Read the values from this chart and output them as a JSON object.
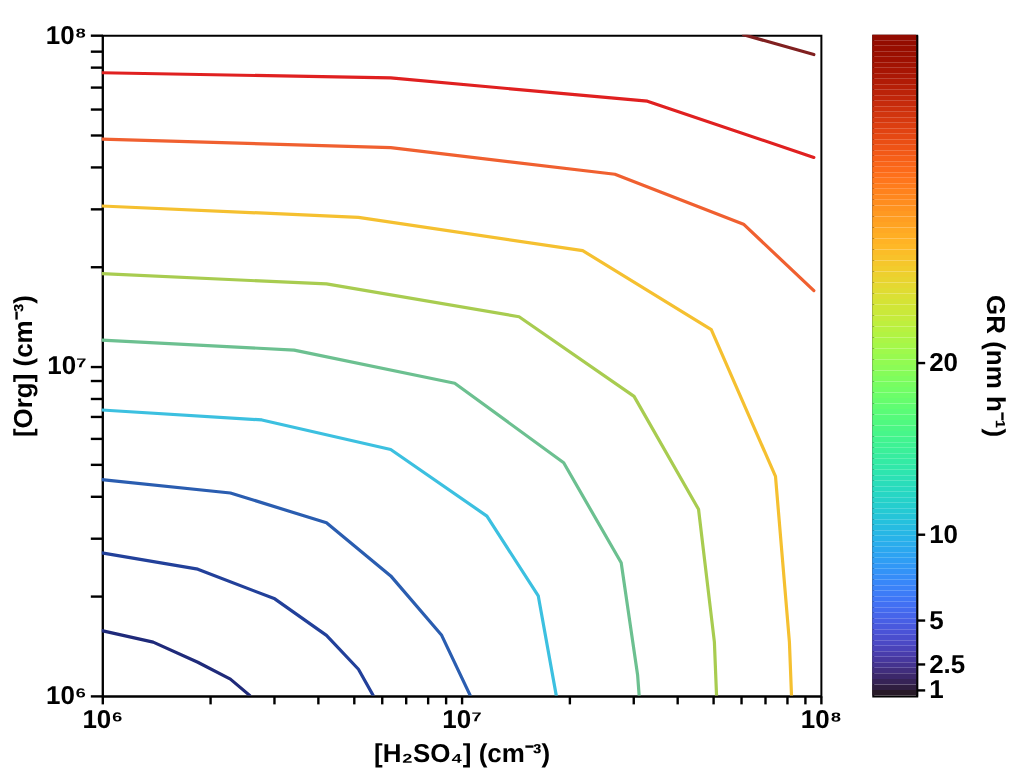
{
  "chart_data": {
    "type": "line",
    "xlabel": "[H₂SO₄]  (cm⁻³)",
    "ylabel": "[Org]  (cm⁻³)",
    "clabel": "GR  (nm h⁻¹)",
    "log": "xy",
    "grid": false,
    "legend": false,
    "marker": "none",
    "line_style": "solid",
    "xlim": [
      1000000,
      100000000
    ],
    "ylim": [
      1000000,
      100000000
    ],
    "xticks": [
      {
        "value": 1000000,
        "label": "10⁶"
      },
      {
        "value": 2000000,
        "label": null
      },
      {
        "value": 3000000,
        "label": null
      },
      {
        "value": 4000000,
        "label": null
      },
      {
        "value": 5000000,
        "label": null
      },
      {
        "value": 6000000,
        "label": null
      },
      {
        "value": 7000000,
        "label": null
      },
      {
        "value": 8000000,
        "label": null
      },
      {
        "value": 9000000,
        "label": null
      },
      {
        "value": 10000000,
        "label": "10⁷"
      },
      {
        "value": 20000000,
        "label": null
      },
      {
        "value": 30000000,
        "label": null
      },
      {
        "value": 40000000,
        "label": null
      },
      {
        "value": 50000000,
        "label": null
      },
      {
        "value": 60000000,
        "label": null
      },
      {
        "value": 70000000,
        "label": null
      },
      {
        "value": 80000000,
        "label": null
      },
      {
        "value": 90000000,
        "label": null
      },
      {
        "value": 100000000,
        "label": "10⁸"
      }
    ],
    "yticks": [
      {
        "value": 1000000,
        "label": "10⁶"
      },
      {
        "value": 2000000,
        "label": null
      },
      {
        "value": 3000000,
        "label": null
      },
      {
        "value": 4000000,
        "label": null
      },
      {
        "value": 5000000,
        "label": null
      },
      {
        "value": 6000000,
        "label": null
      },
      {
        "value": 7000000,
        "label": null
      },
      {
        "value": 8000000,
        "label": null
      },
      {
        "value": 9000000,
        "label": null
      },
      {
        "value": 10000000,
        "label": "10⁷"
      },
      {
        "value": 20000000,
        "label": null
      },
      {
        "value": 30000000,
        "label": null
      },
      {
        "value": 40000000,
        "label": null
      },
      {
        "value": 50000000,
        "label": null
      },
      {
        "value": 60000000,
        "label": null
      },
      {
        "value": 70000000,
        "label": null
      },
      {
        "value": 80000000,
        "label": null
      },
      {
        "value": 90000000,
        "label": null
      },
      {
        "value": 100000000,
        "label": "10⁸"
      }
    ],
    "clim": [
      0.65,
      39
    ],
    "cticks": [
      1,
      2.5,
      5,
      10,
      20
    ],
    "series": [
      {
        "color": "#1f2a7a",
        "x": [
          1000000,
          1390000,
          1850000,
          2280000,
          2580000
        ],
        "values": [
          1570000,
          1450000,
          1260000,
          1120000,
          1000000
        ]
      },
      {
        "color": "#22409a",
        "x": [
          1000000,
          1850000,
          3030000,
          4220000,
          5180000,
          5690000
        ],
        "values": [
          2700000,
          2410000,
          1960000,
          1520000,
          1200000,
          1000000
        ]
      },
      {
        "color": "#2a5db0",
        "x": [
          1000000,
          2280000,
          4220000,
          6370000,
          8830000,
          10600000
        ],
        "values": [
          4500000,
          4100000,
          3330000,
          2300000,
          1520000,
          1000000
        ]
      },
      {
        "color": "#3cc0e0",
        "x": [
          1000000,
          2790000,
          6370000,
          11800000,
          16400000,
          18400000
        ],
        "values": [
          7310000,
          6820000,
          5550000,
          3490000,
          2000000,
          1000000
        ]
      },
      {
        "color": "#6cc090",
        "x": [
          1000000,
          3430000,
          9600000,
          19300000,
          27900000,
          31000000,
          31300000
        ],
        "values": [
          11900000,
          11100000,
          8810000,
          5060000,
          2520000,
          1150000,
          1000000
        ]
      },
      {
        "color": "#a8cc50",
        "x": [
          1000000,
          4220000,
          14500000,
          30300000,
          45800000,
          50700000,
          51400000
        ],
        "values": [
          18900000,
          17600000,
          14000000,
          8040000,
          3660000,
          1450000,
          1000000
        ]
      },
      {
        "color": "#f5c030",
        "x": [
          1000000,
          5180000,
          21800000,
          49700000,
          75000000,
          82000000,
          83100000
        ],
        "values": [
          30300000,
          28000000,
          22200000,
          12800000,
          4600000,
          1450000,
          1000000
        ]
      },
      {
        "color": "#f06030",
        "x": [
          1000000,
          6370000,
          26800000,
          61100000,
          95900000
        ],
        "values": [
          48300000,
          45500000,
          37800000,
          26700000,
          16800000
        ]
      },
      {
        "color": "#e02020",
        "x": [
          1000000,
          6370000,
          33000000,
          95900000
        ],
        "values": [
          76700000,
          74000000,
          62900000,
          42500000
        ]
      },
      {
        "color": "#802020",
        "x": [
          61100000,
          95900000
        ],
        "values": [
          100000000,
          87100000
        ]
      }
    ]
  }
}
